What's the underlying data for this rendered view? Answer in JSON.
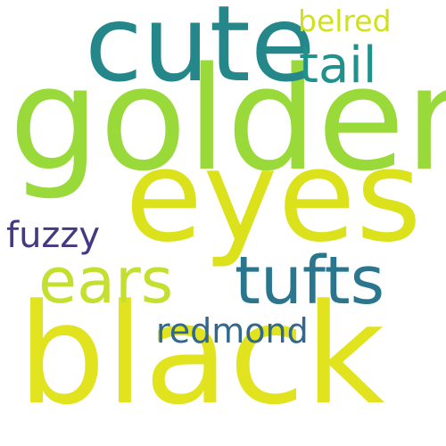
{
  "words": [
    {
      "text": "golden",
      "color": "#99d93a"
    },
    {
      "text": "black",
      "color": "#e2e31f"
    },
    {
      "text": "eyes",
      "color": "#dbe21c"
    },
    {
      "text": "cute",
      "color": "#25878a"
    },
    {
      "text": "tufts",
      "color": "#2a768e"
    },
    {
      "text": "ears",
      "color": "#c4df2f"
    },
    {
      "text": "tail",
      "color": "#21918b"
    },
    {
      "text": "fuzzy",
      "color": "#443a83"
    },
    {
      "text": "redmond",
      "color": "#31688e"
    },
    {
      "text": "belred",
      "color": "#d0e11c"
    }
  ]
}
